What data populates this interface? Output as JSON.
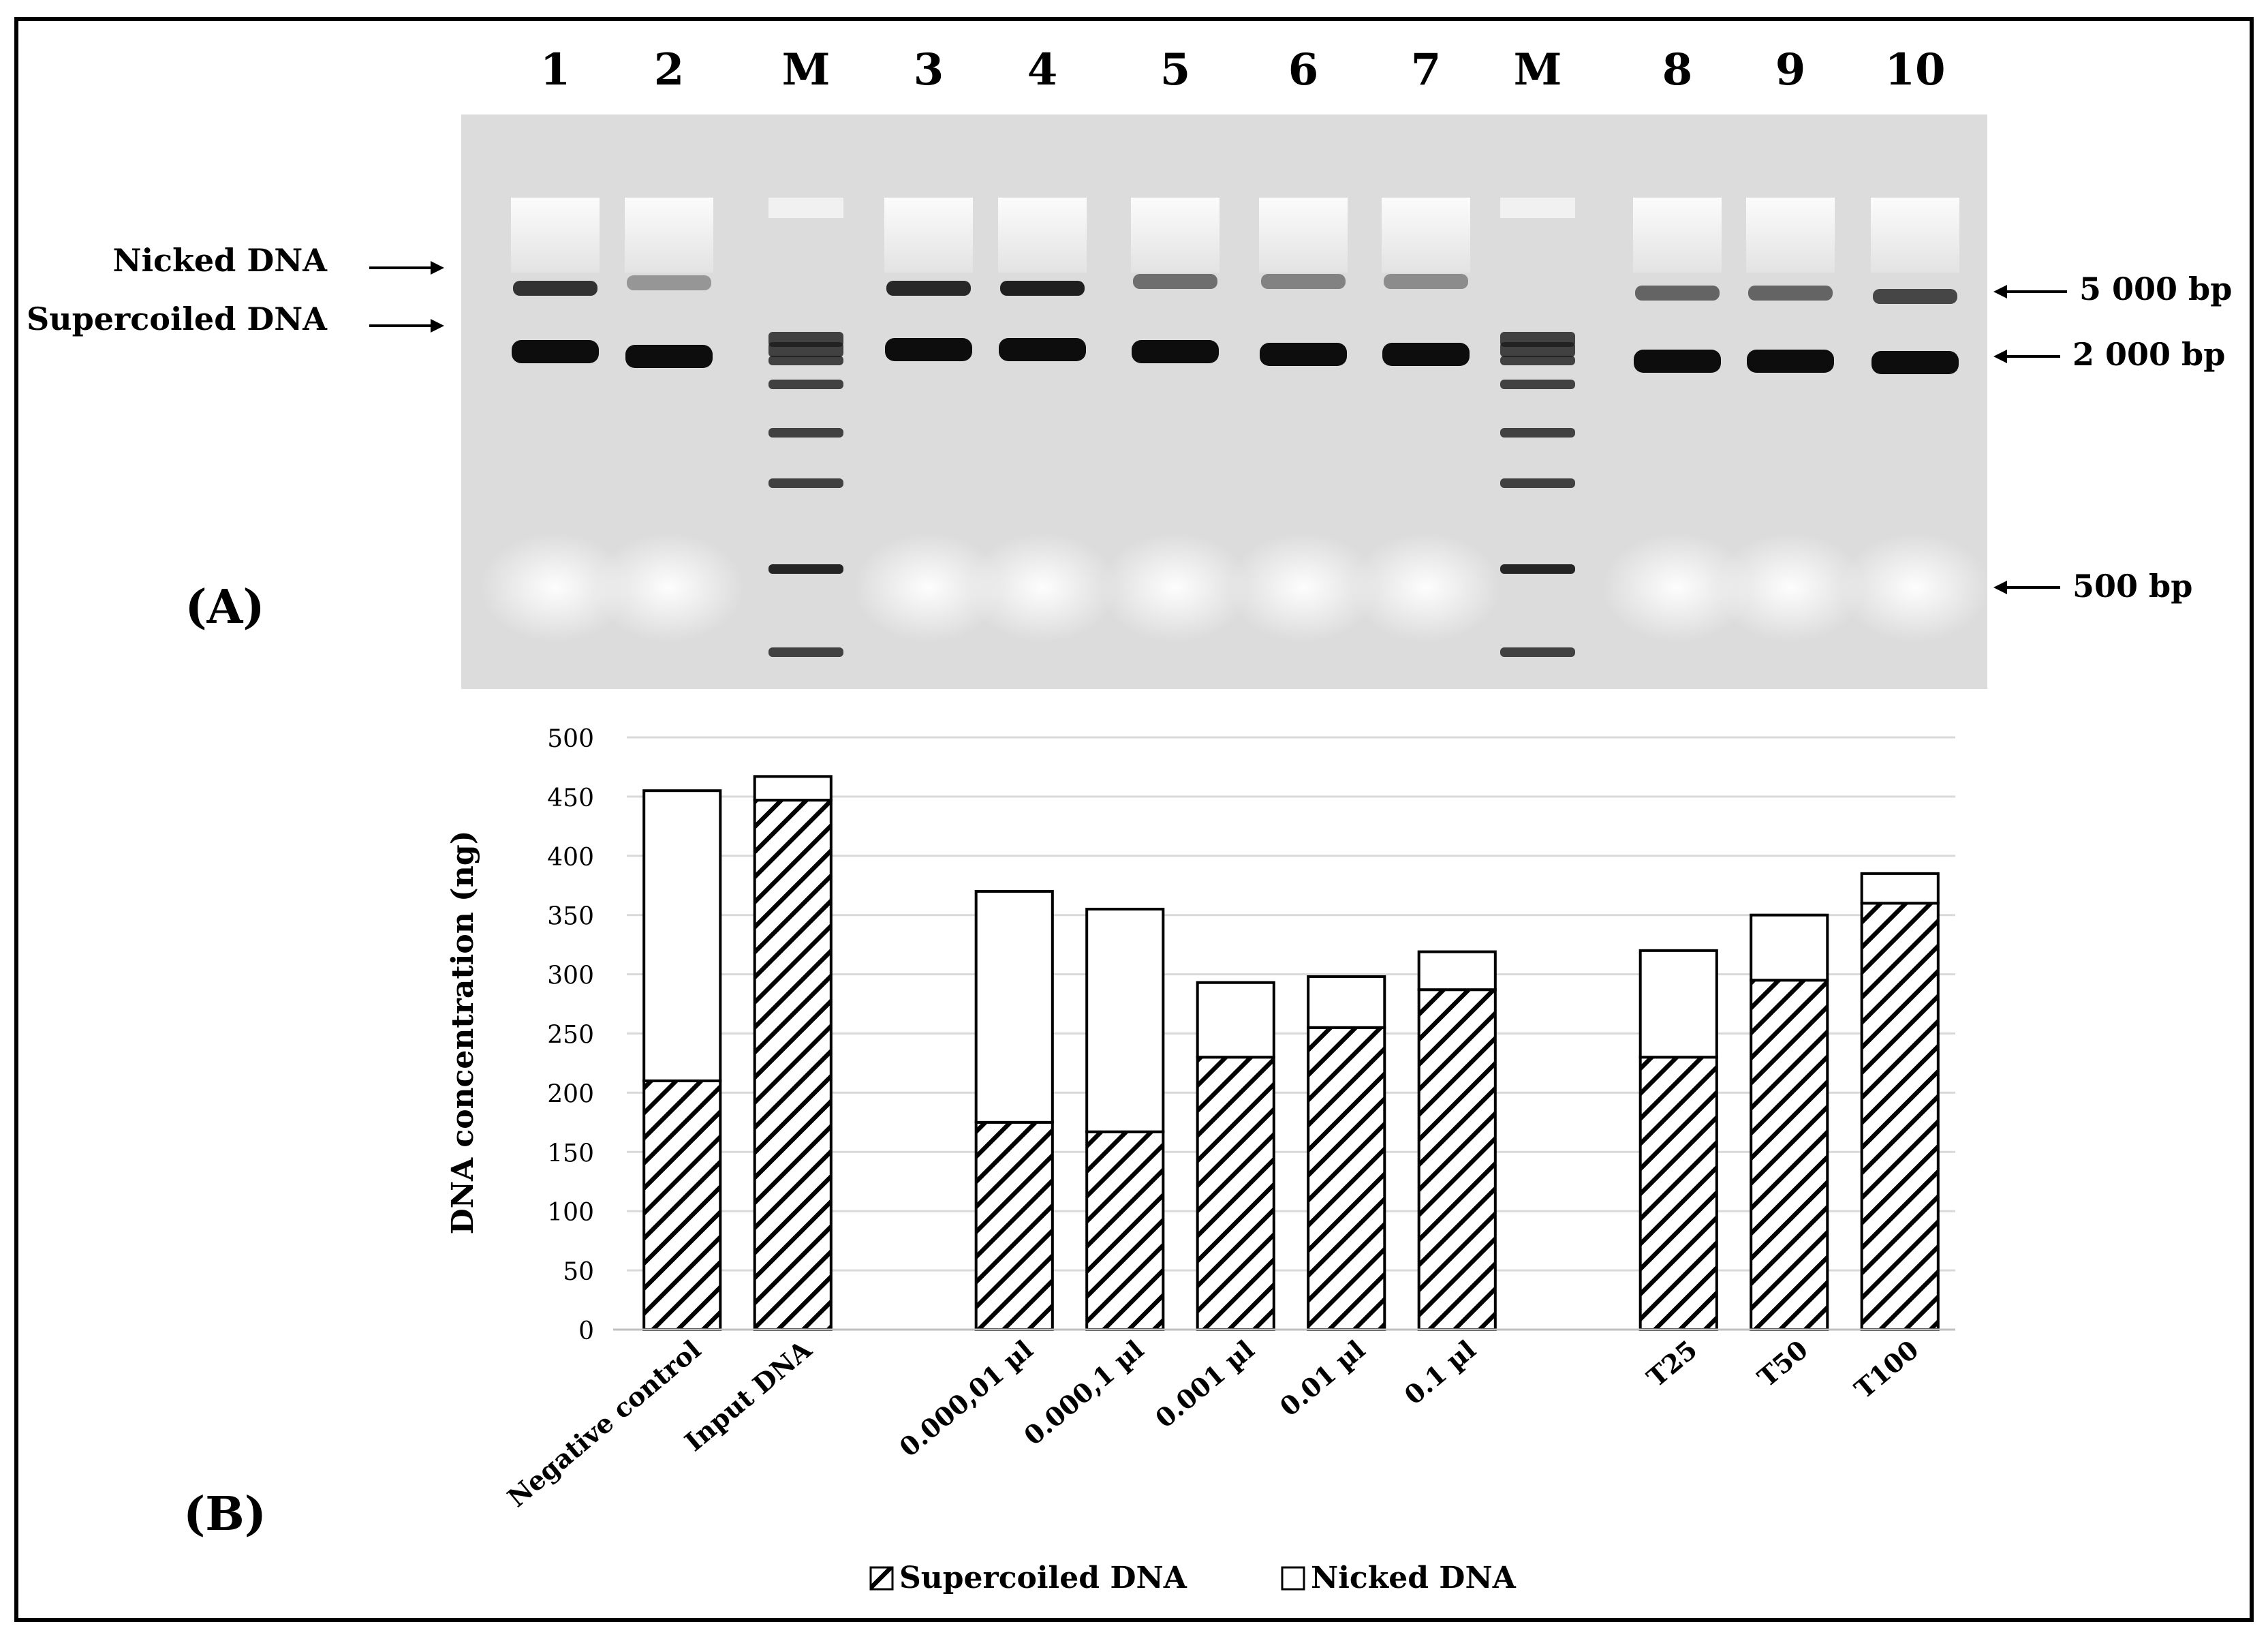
{
  "panel_a": {
    "label": "(A)",
    "lanes": [
      "1",
      "2",
      "M",
      "3",
      "4",
      "5",
      "6",
      "7",
      "M",
      "8",
      "9",
      "10"
    ],
    "left_labels": [
      "Nicked DNA",
      "Supercoiled DNA"
    ],
    "right_labels": [
      "5 000 bp",
      "2 000 bp",
      "500 bp"
    ]
  },
  "panel_b": {
    "label": "(B)"
  },
  "chart_data": {
    "type": "bar",
    "stacked": true,
    "categories": [
      "Negative control",
      "Input DNA",
      "",
      "0.000,01 µl",
      "0.000,1 µl",
      "0.001 µl",
      "0.01 µl",
      "0.1 µl",
      "",
      "T25",
      "T50",
      "T100"
    ],
    "series": [
      {
        "name": "Supercoiled DNA",
        "pattern": "diagonal-hatch",
        "values": [
          210,
          447,
          null,
          175,
          167,
          230,
          255,
          287,
          null,
          230,
          295,
          360
        ]
      },
      {
        "name": "Nicked DNA",
        "pattern": "none",
        "values": [
          245,
          20,
          null,
          195,
          188,
          63,
          43,
          32,
          null,
          90,
          55,
          25
        ]
      }
    ],
    "xlabel": "",
    "ylabel": "DNA concentration (ng)",
    "ylim": [
      0,
      500
    ],
    "yticks": [
      0,
      50,
      100,
      150,
      200,
      250,
      300,
      350,
      400,
      450,
      500
    ],
    "grid": true,
    "legend": "bottom"
  },
  "colors": {
    "gel_background": "#dcdcdc",
    "band": "#141414",
    "bar_stroke": "#000000",
    "grid": "#d9d9d9"
  }
}
